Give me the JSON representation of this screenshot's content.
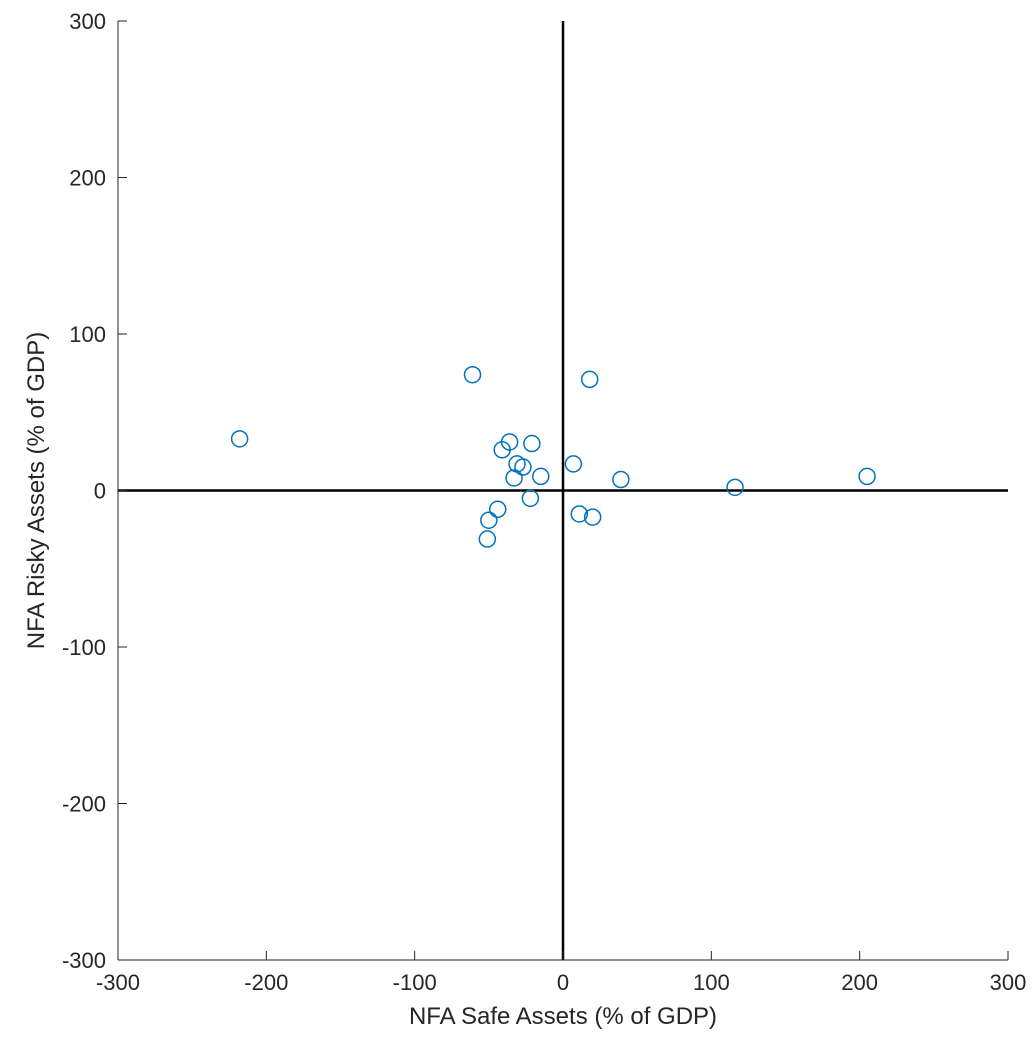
{
  "chart_data": {
    "type": "scatter",
    "title": "",
    "xlabel": "NFA Safe Assets (% of GDP)",
    "ylabel": "NFA Risky Assets (% of GDP)",
    "xlim": [
      -300,
      300
    ],
    "ylim": [
      -300,
      300
    ],
    "xticks": [
      -300,
      -200,
      -100,
      0,
      100,
      200,
      300
    ],
    "yticks": [
      -300,
      -200,
      -100,
      0,
      100,
      200,
      300
    ],
    "xtick_labels": [
      "-300",
      "-200",
      "-100",
      "0",
      "100",
      "200",
      "300"
    ],
    "ytick_labels": [
      "-300",
      "-200",
      "-100",
      "0",
      "100",
      "200",
      "300"
    ],
    "grid": false,
    "zero_lines": true,
    "marker": "open-circle",
    "marker_color": "#0072BD",
    "axis_color": "#262626",
    "zero_line_color": "#000000",
    "points": [
      {
        "x": -218,
        "y": 33
      },
      {
        "x": -61,
        "y": 74
      },
      {
        "x": 18,
        "y": 71
      },
      {
        "x": -36,
        "y": 31
      },
      {
        "x": -21,
        "y": 30
      },
      {
        "x": -41,
        "y": 26
      },
      {
        "x": -31,
        "y": 17
      },
      {
        "x": -27,
        "y": 15
      },
      {
        "x": -33,
        "y": 8
      },
      {
        "x": -15,
        "y": 9
      },
      {
        "x": 7,
        "y": 17
      },
      {
        "x": 39,
        "y": 7
      },
      {
        "x": 116,
        "y": 2
      },
      {
        "x": 205,
        "y": 9
      },
      {
        "x": -22,
        "y": -5
      },
      {
        "x": -44,
        "y": -12
      },
      {
        "x": -50,
        "y": -19
      },
      {
        "x": -51,
        "y": -31
      },
      {
        "x": 11,
        "y": -15
      },
      {
        "x": 20,
        "y": -17
      }
    ]
  }
}
